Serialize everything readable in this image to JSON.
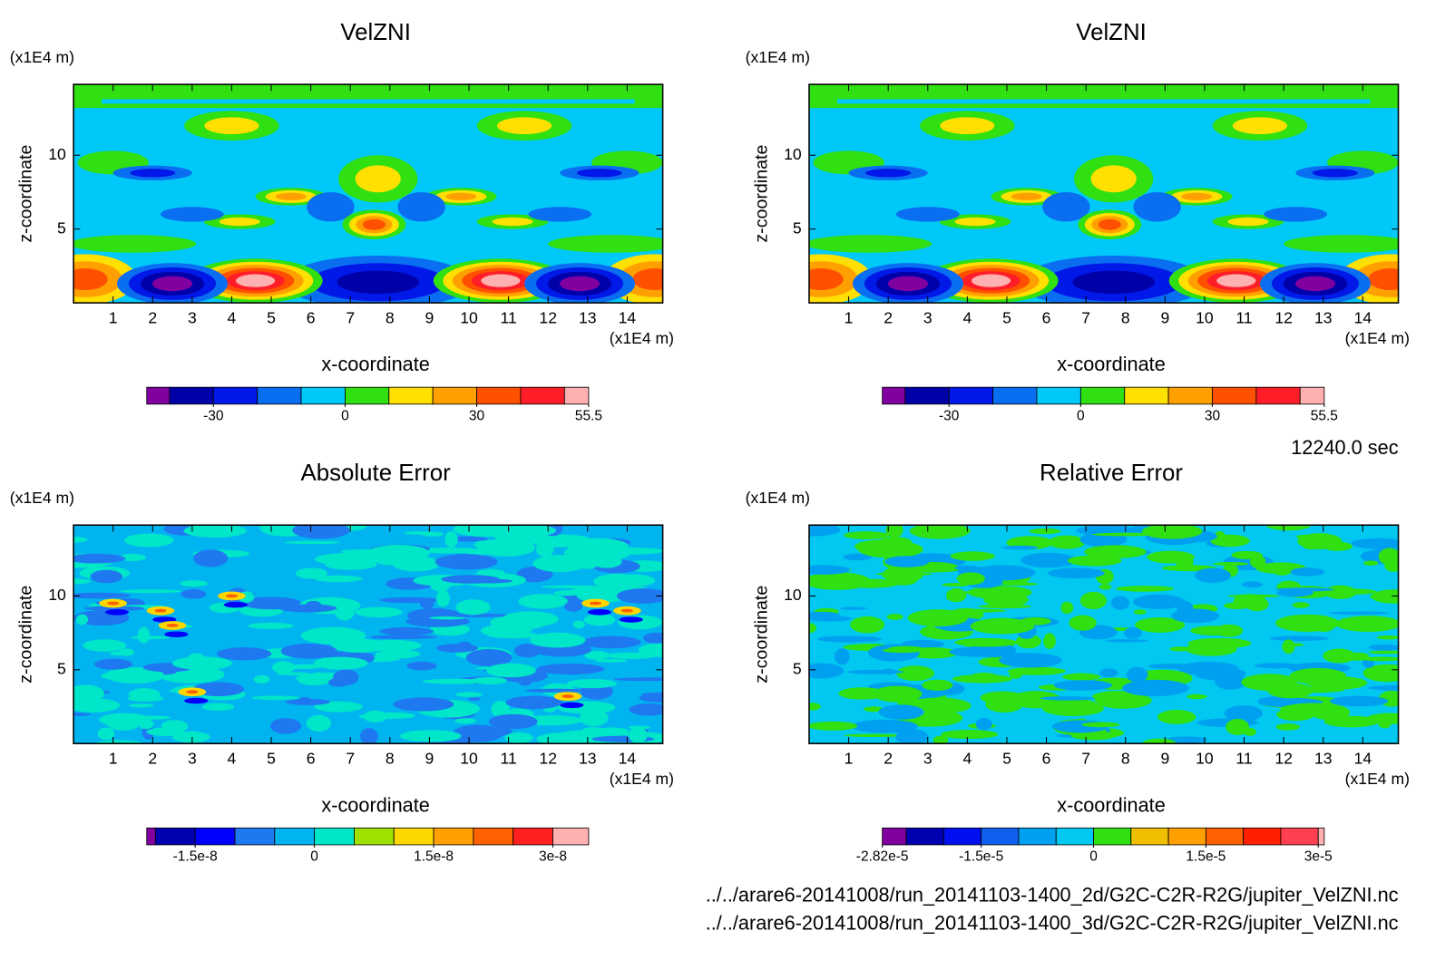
{
  "chart_data": [
    {
      "type": "contour",
      "title": "VelZNI",
      "xlabel": "x-coordinate",
      "ylabel": "z-coordinate",
      "xunit": "(x1E4 m)",
      "yunit": "(x1E4 m)",
      "xlim": [
        0,
        14.9
      ],
      "xticks": [
        1,
        2,
        3,
        4,
        5,
        6,
        7,
        8,
        9,
        10,
        11,
        12,
        13,
        14
      ],
      "ylim": [
        0,
        14.8
      ],
      "yticks": [
        5,
        10
      ],
      "colorbar": {
        "levels": [
          -45.2,
          -40,
          -30,
          -20,
          -10,
          0,
          10,
          20,
          30,
          40,
          50,
          55.5
        ],
        "colors": [
          "#8000a0",
          "#0000a8",
          "#0018e8",
          "#0a6ef0",
          "#00c8f8",
          "#30e010",
          "#ffe000",
          "#ffa000",
          "#ff5000",
          "#ff1e28",
          "#ffb0b0"
        ],
        "ticks": [
          -30,
          0,
          30,
          55.5
        ]
      }
    },
    {
      "type": "contour",
      "title": "VelZNI",
      "xlabel": "x-coordinate",
      "ylabel": "z-coordinate",
      "xunit": "(x1E4 m)",
      "yunit": "(x1E4 m)",
      "xlim": [
        0,
        14.9
      ],
      "xticks": [
        1,
        2,
        3,
        4,
        5,
        6,
        7,
        8,
        9,
        10,
        11,
        12,
        13,
        14
      ],
      "ylim": [
        0,
        14.8
      ],
      "yticks": [
        5,
        10
      ],
      "colorbar": {
        "levels": [
          -45.2,
          -40,
          -30,
          -20,
          -10,
          0,
          10,
          20,
          30,
          40,
          50,
          55.5
        ],
        "colors": [
          "#8000a0",
          "#0000a8",
          "#0018e8",
          "#0a6ef0",
          "#00c8f8",
          "#30e010",
          "#ffe000",
          "#ffa000",
          "#ff5000",
          "#ff1e28",
          "#ffb0b0"
        ],
        "ticks": [
          -30,
          0,
          30,
          55.5
        ]
      }
    },
    {
      "type": "contour",
      "title": "Absolute Error",
      "xlabel": "x-coordinate",
      "ylabel": "z-coordinate",
      "xunit": "(x1E4 m)",
      "yunit": "(x1E4 m)",
      "xlim": [
        0,
        14.9
      ],
      "xticks": [
        1,
        2,
        3,
        4,
        5,
        6,
        7,
        8,
        9,
        10,
        11,
        12,
        13,
        14
      ],
      "ylim": [
        0,
        14.8
      ],
      "yticks": [
        5,
        10
      ],
      "colorbar": {
        "levels": [
          -2.11e-08,
          -2e-08,
          -1.5e-08,
          -1e-08,
          -5e-09,
          0,
          5e-09,
          1e-08,
          1.5e-08,
          2e-08,
          2.5e-08,
          3e-08,
          3.45e-08
        ],
        "colors": [
          "#8000a0",
          "#0000b0",
          "#0000ff",
          "#1e78f0",
          "#00b4f0",
          "#00e6c8",
          "#a0e000",
          "#ffd700",
          "#ffa000",
          "#ff6000",
          "#ff2020",
          "#ffb0b0"
        ],
        "ticks": [
          {
            "value": -1.5e-08,
            "label": "-1.5e-8"
          },
          0,
          {
            "value": 1.5e-08,
            "label": "1.5e-8"
          },
          {
            "value": 3e-08,
            "label": "3e-8"
          }
        ]
      }
    },
    {
      "type": "contour",
      "title": "Relative Error",
      "xlabel": "x-coordinate",
      "ylabel": "z-coordinate",
      "xunit": "(x1E4 m)",
      "yunit": "(x1E4 m)",
      "xlim": [
        0,
        14.9
      ],
      "xticks": [
        1,
        2,
        3,
        4,
        5,
        6,
        7,
        8,
        9,
        10,
        11,
        12,
        13,
        14
      ],
      "ylim": [
        0,
        14.8
      ],
      "yticks": [
        5,
        10
      ],
      "colorbar": {
        "levels": [
          -2.82e-05,
          -2.5e-05,
          -2e-05,
          -1.5e-05,
          -1e-05,
          -5e-06,
          0,
          5e-06,
          1e-05,
          1.5e-05,
          2e-05,
          2.5e-05,
          3e-05,
          3.08e-05
        ],
        "colors": [
          "#8000a0",
          "#0000b0",
          "#0010f0",
          "#1060f0",
          "#00a0f0",
          "#00c8f0",
          "#30e010",
          "#f0c000",
          "#ffa000",
          "#ff6000",
          "#ff2000",
          "#ff4050",
          "#ffb0b0"
        ],
        "ticks": [
          {
            "value": -2.82e-05,
            "label": "-2.82e-5"
          },
          {
            "value": -1.5e-05,
            "label": "-1.5e-5"
          },
          0,
          {
            "value": 1.5e-05,
            "label": "1.5e-5"
          },
          {
            "value": 3e-05,
            "label": "3e-5"
          }
        ]
      }
    }
  ],
  "annotations": {
    "time": "12240.0 sec",
    "files": [
      "../../arare6-20141008/run_20141103-1400_2d/G2C-C2R-R2G/jupiter_VelZNI.nc",
      "../../arare6-20141008/run_20141103-1400_3d/G2C-C2R-R2G/jupiter_VelZNI.nc"
    ]
  }
}
